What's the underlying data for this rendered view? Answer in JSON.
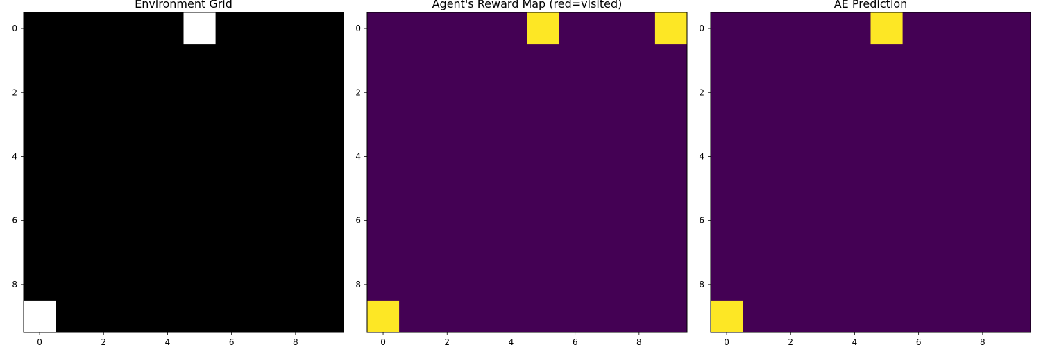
{
  "chart_data": [
    {
      "type": "heatmap",
      "title": "Environment Grid",
      "rows": 10,
      "cols": 10,
      "xticks": [
        "0",
        "2",
        "4",
        "6",
        "8"
      ],
      "yticks": [
        "0",
        "2",
        "4",
        "6",
        "8"
      ],
      "xlim": [
        -0.5,
        9.5
      ],
      "ylim": [
        9.5,
        -0.5
      ],
      "background_color": "#000000",
      "highlight_color": "#ffffff",
      "highlighted_cells": [
        [
          0,
          5
        ],
        [
          9,
          0
        ]
      ]
    },
    {
      "type": "heatmap",
      "title": "Agent's Reward Map (red=visited)",
      "rows": 10,
      "cols": 10,
      "xticks": [
        "0",
        "2",
        "4",
        "6",
        "8"
      ],
      "yticks": [
        "0",
        "2",
        "4",
        "6",
        "8"
      ],
      "xlim": [
        -0.5,
        9.5
      ],
      "ylim": [
        9.5,
        -0.5
      ],
      "background_color": "#440154",
      "highlight_color": "#fde725",
      "highlighted_cells": [
        [
          0,
          5
        ],
        [
          0,
          9
        ],
        [
          9,
          0
        ]
      ]
    },
    {
      "type": "heatmap",
      "title": "AE Prediction",
      "rows": 10,
      "cols": 10,
      "xticks": [
        "0",
        "2",
        "4",
        "6",
        "8"
      ],
      "yticks": [
        "0",
        "2",
        "4",
        "6",
        "8"
      ],
      "xlim": [
        -0.5,
        9.5
      ],
      "ylim": [
        9.5,
        -0.5
      ],
      "background_color": "#440154",
      "highlight_color": "#fde725",
      "highlighted_cells": [
        [
          0,
          5
        ],
        [
          9,
          0
        ]
      ]
    }
  ]
}
